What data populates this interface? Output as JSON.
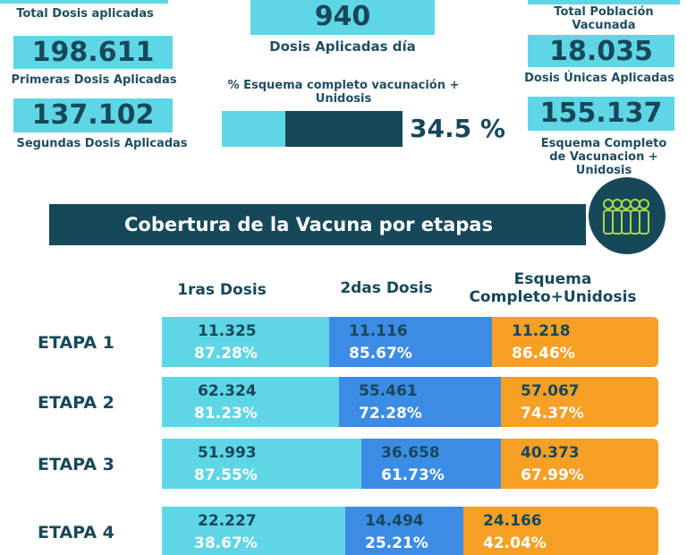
{
  "left_stats": {
    "total_label": "Total Dosis aplicadas",
    "first_value": "198.611",
    "first_label": "Primeras Dosis Aplicadas",
    "second_value": "137.102",
    "second_label": "Segundas Dosis Aplicadas"
  },
  "center_stats": {
    "daily_value": "940",
    "daily_label": "Dosis Aplicadas día",
    "scheme_label": "% Esquema completo vacunación + Unidosis",
    "progress_percent": 34.5,
    "progress_text": "34.5 %"
  },
  "right_stats": {
    "total_label": "Total Población Vacunada",
    "unique_value": "18.035",
    "unique_label": "Dosis Únicas Aplicadas",
    "complete_value": "155.137",
    "complete_label": "Esquema Completo de Vacunacion + Unidosis"
  },
  "banner": {
    "title": "Cobertura de la Vacuna por etapas",
    "icon": "people-group-icon"
  },
  "columns": {
    "first": "1ras Dosis",
    "second": "2das Dosis",
    "third": "Esquema Completo+Unidosis"
  },
  "colors": {
    "dark": "#17485a",
    "cyan": "#5fd6e6",
    "blue": "#3c8ce6",
    "orange": "#f7a026"
  },
  "stages": [
    {
      "label": "ETAPA 1",
      "first_num": "11.325",
      "first_pct": "87.28%",
      "second_num": "11.116",
      "second_pct": "85.67%",
      "third_num": "11.218",
      "third_pct": "86.46%"
    },
    {
      "label": "ETAPA 2",
      "first_num": "62.324",
      "first_pct": "81.23%",
      "second_num": "55.461",
      "second_pct": "72.28%",
      "third_num": "57.067",
      "third_pct": "74.37%"
    },
    {
      "label": "ETAPA 3",
      "first_num": "51.993",
      "first_pct": "87.55%",
      "second_num": "36.658",
      "second_pct": "61.73%",
      "third_num": "40.373",
      "third_pct": "67.99%"
    },
    {
      "label": "ETAPA 4",
      "first_num": "22.227",
      "first_pct": "38.67%",
      "second_num": "14.494",
      "second_pct": "25.21%",
      "third_num": "24.166",
      "third_pct": "42.04%"
    }
  ]
}
